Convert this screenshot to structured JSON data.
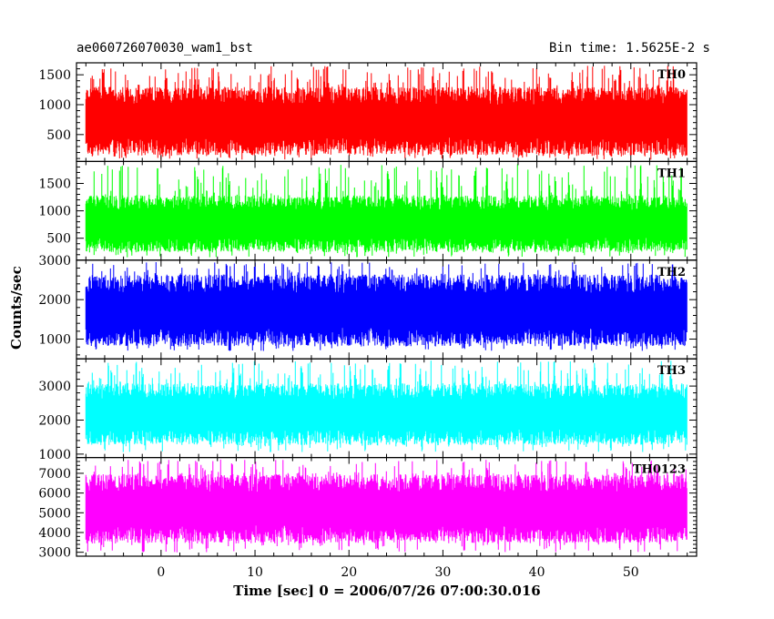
{
  "header": {
    "title": "ae060726070030_wam1_bst",
    "bin_time": "Bin time: 1.5625E-2 s"
  },
  "chart_data": {
    "type": "line",
    "xlabel": "Time [sec] 0 = 2006/07/26 07:00:30.016",
    "ylabel": "Counts/sec",
    "xlim": [
      -9,
      57
    ],
    "x_range_data": [
      -8,
      56
    ],
    "x_ticks": [
      0,
      10,
      20,
      30,
      40,
      50
    ],
    "panels": [
      {
        "name": "TH0",
        "color": "#ff0000",
        "ylim": [
          50,
          1700
        ],
        "yticks": [
          500,
          1000,
          1500
        ],
        "base_low": 300,
        "base_high": 1150,
        "spike_low": 80,
        "spike_high": 1650
      },
      {
        "name": "TH1",
        "color": "#00ff00",
        "ylim": [
          100,
          1900
        ],
        "yticks": [
          500,
          1000,
          1500
        ],
        "base_low": 380,
        "base_high": 1150,
        "spike_low": 150,
        "spike_high": 1850
      },
      {
        "name": "TH2",
        "color": "#0000ff",
        "ylim": [
          500,
          3000
        ],
        "yticks": [
          1000,
          2000,
          3000
        ],
        "base_low": 1050,
        "base_high": 2400,
        "spike_low": 700,
        "spike_high": 2950
      },
      {
        "name": "TH3",
        "color": "#00ffff",
        "ylim": [
          900,
          3800
        ],
        "yticks": [
          1000,
          2000,
          3000
        ],
        "base_low": 1500,
        "base_high": 2850,
        "spike_low": 1050,
        "spike_high": 3750
      },
      {
        "name": "TH0123",
        "color": "#ff00ff",
        "ylim": [
          2800,
          7800
        ],
        "yticks": [
          3000,
          4000,
          5000,
          6000,
          7000
        ],
        "base_low": 3900,
        "base_high": 6500,
        "spike_low": 3000,
        "spike_high": 7700
      }
    ]
  }
}
